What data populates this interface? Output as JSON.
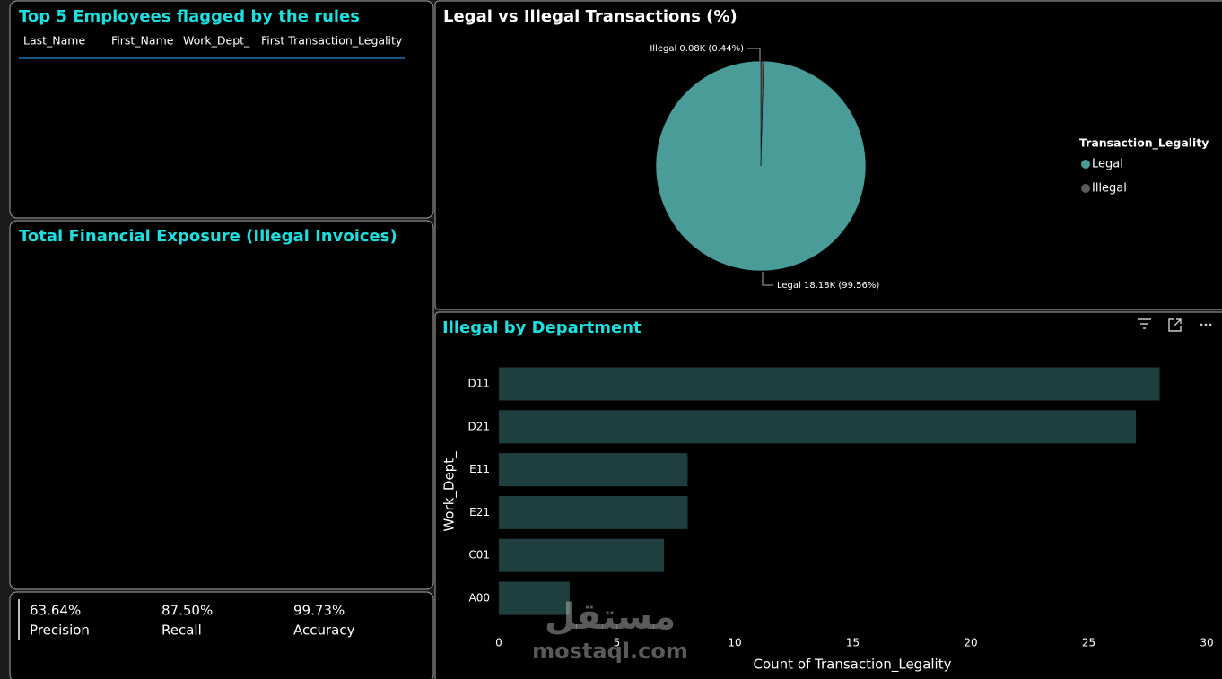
{
  "table": {
    "title": "Top 5 Employees flagged by the rules",
    "columns": [
      "Last_Name",
      "First_Name",
      "Work_Dept_",
      "First Transaction_Legality"
    ]
  },
  "exposure": {
    "title": "Total Financial Exposure (Illegal Invoices)"
  },
  "kpis": [
    {
      "value": "63.64%",
      "label": "Precision"
    },
    {
      "value": "87.50%",
      "label": "Recall"
    },
    {
      "value": "99.73%",
      "label": "Accuracy"
    }
  ],
  "chart_data": [
    {
      "type": "pie",
      "title": "Legal vs Illegal Transactions (%)",
      "legend_title": "Transaction_Legality",
      "categories": [
        "Legal",
        "Illegal"
      ],
      "values": [
        99.56,
        0.44
      ],
      "value_labels": [
        "Legal 18.18K (99.56%)",
        "Illegal 0.08K (0.44%)"
      ],
      "colors": [
        "#4a9c98",
        "#5b5b5b"
      ],
      "legend": "right"
    },
    {
      "type": "hbar",
      "title": "Illegal by Department",
      "x_label": "Count of Transaction_Legality",
      "y_label": "Work_Dept_",
      "categories": [
        "D11",
        "D21",
        "E11",
        "E21",
        "C01",
        "A00"
      ],
      "values": [
        28,
        27,
        8,
        8,
        7,
        3
      ],
      "color": "#1e3f3d",
      "xlim": [
        0,
        30
      ],
      "xticks": [
        0,
        5,
        10,
        15,
        20,
        25,
        30
      ]
    }
  ],
  "watermark": {
    "arabic": "مستقل",
    "latin": "mostaql.com"
  }
}
